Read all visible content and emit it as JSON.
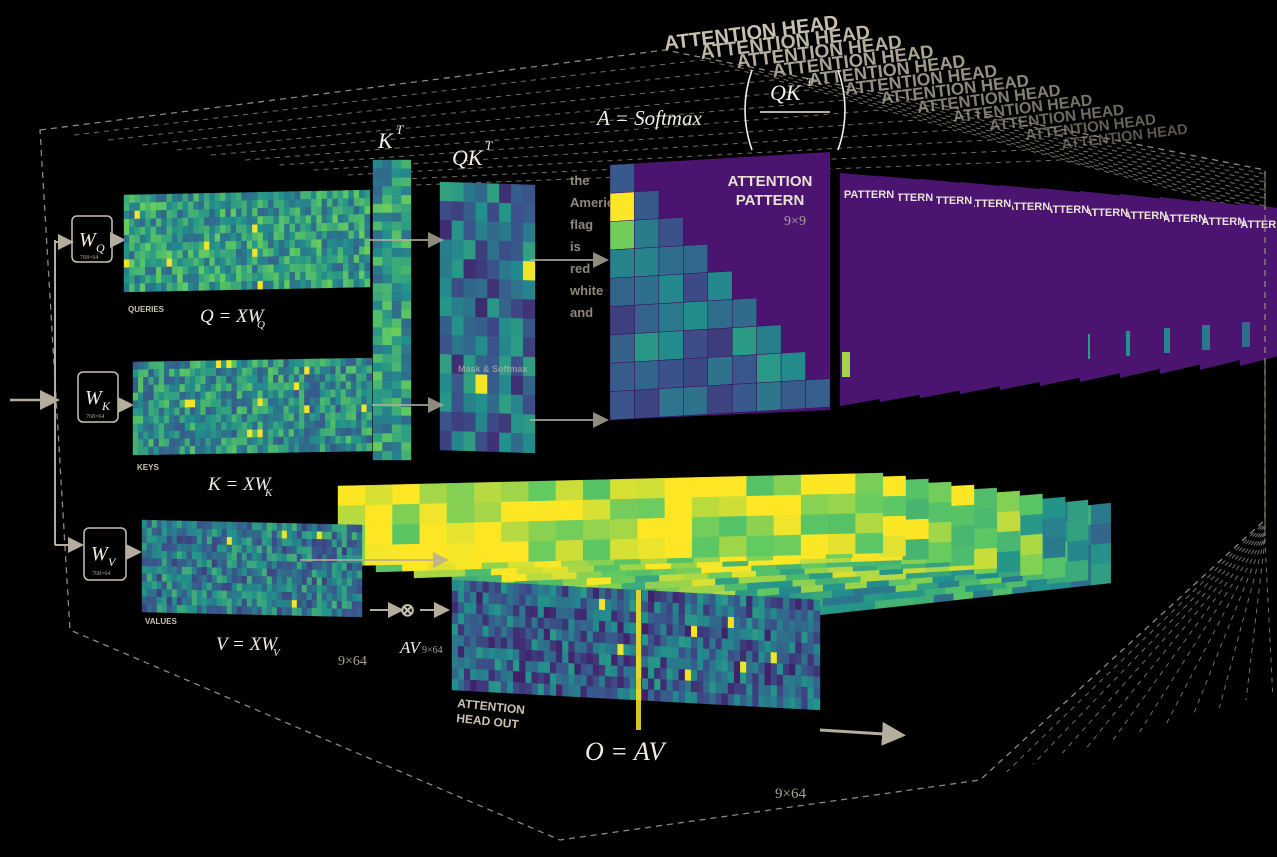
{
  "heads": {
    "title": "ATTENTION HEAD",
    "count": 12
  },
  "weights": {
    "wq_symbol": "W",
    "wq_sub": "Q",
    "wq_dims": "768×64",
    "wk_symbol": "W",
    "wk_sub": "K",
    "wk_dims": "768×64",
    "wv_symbol": "W",
    "wv_sub": "V",
    "wv_dims": "768×64"
  },
  "queries": {
    "label": "QUERIES",
    "equation": "Q = XW",
    "sub": "Q"
  },
  "keys": {
    "label": "KEYS",
    "equation": "K = XW",
    "sub": "K",
    "transpose": "K",
    "transpose_sup": "T"
  },
  "values": {
    "label": "VALUES",
    "equation": "V = XW",
    "sub": "V",
    "dims": "9×64"
  },
  "qk": {
    "symbol": "QK",
    "sup": "T"
  },
  "softmax": {
    "equation": "A = Softmax",
    "frac_num": "QK",
    "frac_sup": "T",
    "mask_label": "Mask & Softmax"
  },
  "pattern": {
    "label_line1": "ATTENTION",
    "label_line2": "PATTERN",
    "dims": "9×9"
  },
  "tokens": [
    "the",
    "American",
    "flag",
    "is",
    "red",
    "white",
    "and"
  ],
  "av": {
    "symbol": "AV",
    "dims": "9×64",
    "product": "⊗"
  },
  "output": {
    "label_line1": "ATTENTION",
    "label_line2": "HEAD OUT",
    "equation": "O = AV",
    "dims": "9×64"
  },
  "colors": {
    "background": "#000000",
    "frame": "#8f887b",
    "arrow": "#b5ad9d",
    "attention_bg": "#4a1470",
    "viridis_low": "#440154",
    "viridis_mid": "#21918c",
    "viridis_high": "#fde725"
  }
}
